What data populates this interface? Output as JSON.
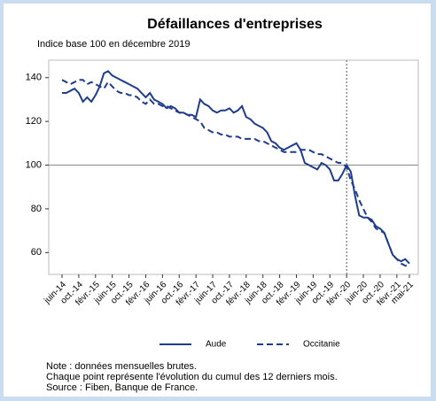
{
  "chart_data": {
    "type": "line",
    "title": "Défaillances d'entreprises",
    "subtitle": "Indice base 100 en décembre 2019",
    "categories": [
      "juin-14",
      null,
      null,
      null,
      "oct.-14",
      null,
      null,
      null,
      "févr.-15",
      null,
      null,
      null,
      "juin-15",
      null,
      null,
      null,
      "oct.-15",
      null,
      null,
      null,
      "févr.-16",
      null,
      null,
      null,
      "juin-16",
      null,
      null,
      null,
      "oct.-16",
      null,
      null,
      null,
      "févr.-17",
      null,
      null,
      null,
      "juin-17",
      null,
      null,
      null,
      "oct.-17",
      null,
      null,
      null,
      "févr.-18",
      null,
      null,
      null,
      "juin-18",
      null,
      null,
      null,
      "oct.-18",
      null,
      null,
      null,
      "févr.-19",
      null,
      null,
      null,
      "juin-19",
      null,
      null,
      null,
      "oct.-19",
      null,
      null,
      null,
      "févr.-20",
      null,
      null,
      null,
      "juin-20",
      null,
      null,
      null,
      "oct.-20",
      null,
      null,
      null,
      "févr.-21",
      null,
      null,
      "mai-21"
    ],
    "series": [
      {
        "name": "Aude",
        "color": "#1f3d8c",
        "line_style": "solid",
        "values": [
          133,
          133,
          134,
          135,
          133,
          129,
          131,
          129,
          132,
          136,
          142,
          143,
          141,
          140,
          139,
          138,
          137,
          136,
          135,
          133,
          131,
          133,
          130,
          129,
          128,
          126,
          127,
          126,
          124,
          124,
          123,
          123,
          122,
          130,
          128,
          127,
          125,
          124,
          125,
          125,
          126,
          124,
          125,
          127,
          122,
          121,
          119,
          118,
          117,
          115,
          111,
          110,
          108,
          107,
          108,
          109,
          110,
          107,
          101,
          100,
          99,
          98,
          101,
          100,
          98,
          93,
          93,
          96,
          100,
          97,
          86,
          77,
          76,
          76,
          75,
          72,
          71,
          69,
          64,
          59,
          57,
          56,
          57,
          55
        ]
      },
      {
        "name": "Occitanie",
        "color": "#1f3d8c",
        "line_style": "dashed",
        "values": [
          139,
          138,
          137,
          138,
          139,
          139,
          137,
          138,
          137,
          136,
          135,
          138,
          136,
          134,
          133,
          133,
          132,
          132,
          131,
          129,
          128,
          130,
          128,
          128,
          127,
          127,
          126,
          125,
          124,
          124,
          123,
          122,
          121,
          120,
          117,
          116,
          115,
          115,
          114,
          114,
          113,
          113,
          113,
          112,
          112,
          112,
          112,
          111,
          111,
          110,
          109,
          108,
          107,
          106,
          106,
          106,
          106,
          107,
          107,
          107,
          106,
          105,
          105,
          104,
          103,
          102,
          101,
          101,
          99,
          93,
          89,
          84,
          80,
          76,
          74,
          71,
          70,
          69,
          64,
          59,
          57,
          55,
          54,
          54
        ]
      }
    ],
    "ylim": [
      50,
      148
    ],
    "yticks": [
      60,
      80,
      100,
      120,
      140
    ],
    "hline": 100,
    "vline": "févr.-20",
    "notes": [
      "Note : données mensuelles brutes.",
      "Chaque point représente l'évolution du cumul des 12 derniers mois.",
      "Source : Fiben, Banque de France."
    ]
  }
}
